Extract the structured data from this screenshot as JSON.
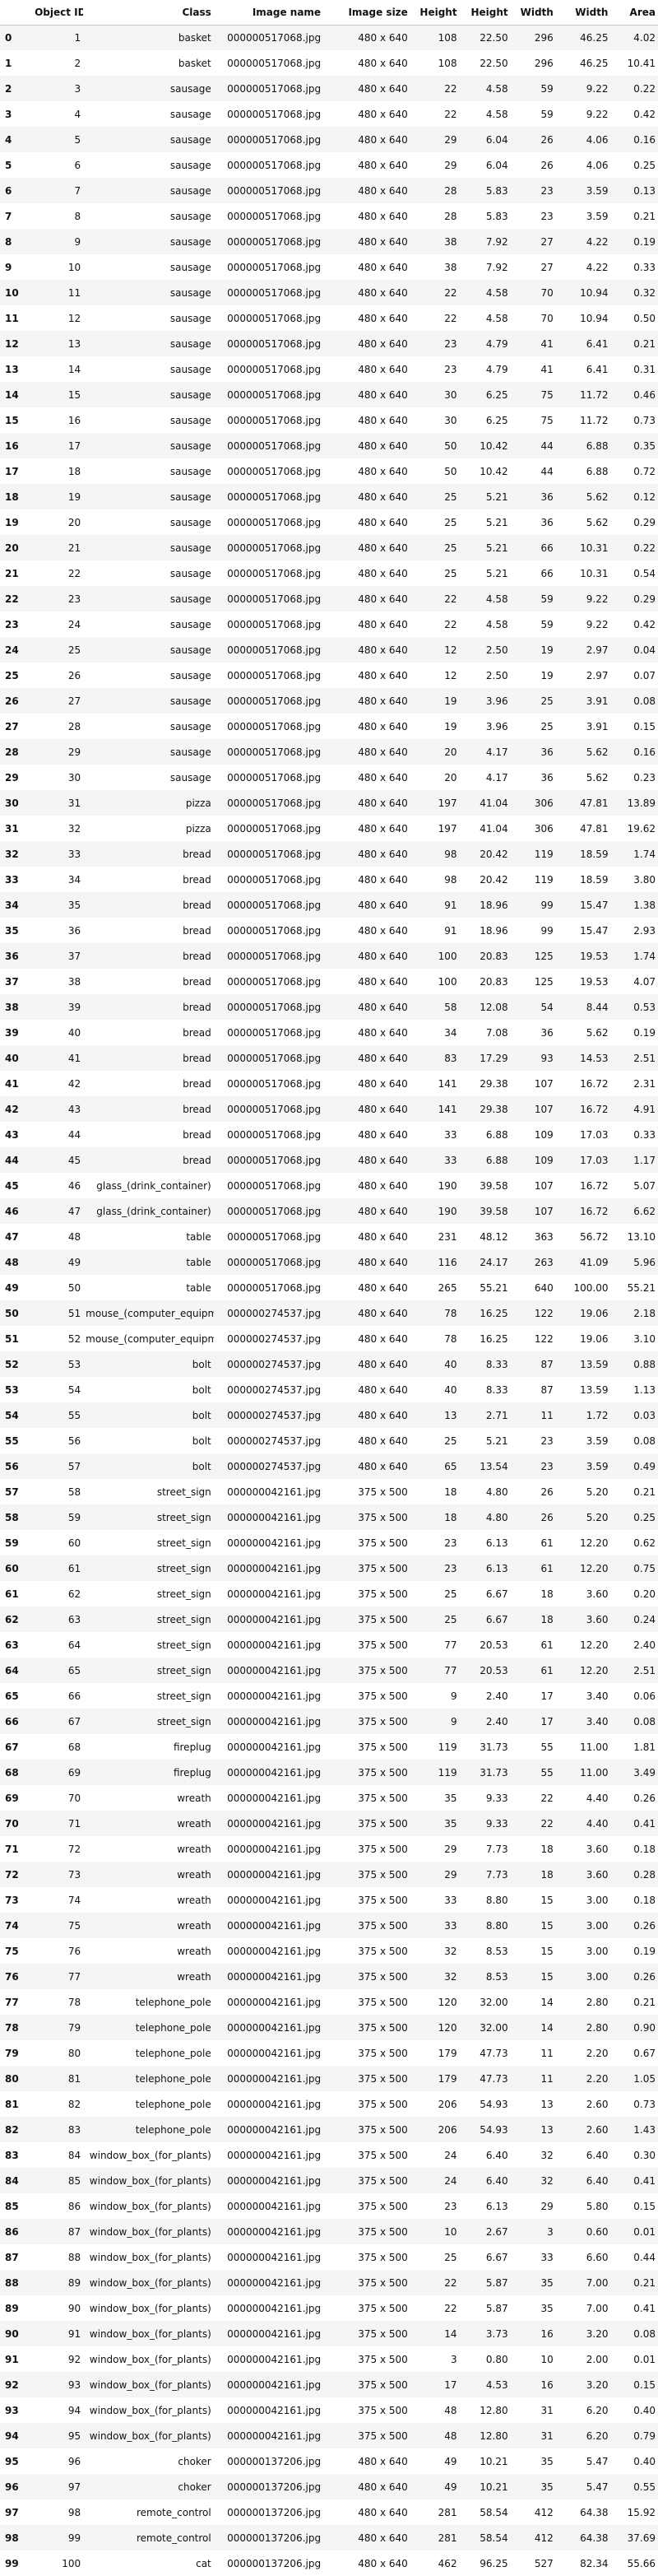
{
  "columns": [
    "Object ID",
    "Class",
    "Image name",
    "Image size",
    "Height",
    "Height",
    "Width",
    "Width",
    "Area"
  ],
  "rows": [
    [
      "0",
      "1",
      "basket",
      "000000517068.jpg",
      "480 x 640",
      "108",
      "22.50",
      "296",
      "46.25",
      "4.02"
    ],
    [
      "1",
      "2",
      "basket",
      "000000517068.jpg",
      "480 x 640",
      "108",
      "22.50",
      "296",
      "46.25",
      "10.41"
    ],
    [
      "2",
      "3",
      "sausage",
      "000000517068.jpg",
      "480 x 640",
      "22",
      "4.58",
      "59",
      "9.22",
      "0.22"
    ],
    [
      "3",
      "4",
      "sausage",
      "000000517068.jpg",
      "480 x 640",
      "22",
      "4.58",
      "59",
      "9.22",
      "0.42"
    ],
    [
      "4",
      "5",
      "sausage",
      "000000517068.jpg",
      "480 x 640",
      "29",
      "6.04",
      "26",
      "4.06",
      "0.16"
    ],
    [
      "5",
      "6",
      "sausage",
      "000000517068.jpg",
      "480 x 640",
      "29",
      "6.04",
      "26",
      "4.06",
      "0.25"
    ],
    [
      "6",
      "7",
      "sausage",
      "000000517068.jpg",
      "480 x 640",
      "28",
      "5.83",
      "23",
      "3.59",
      "0.13"
    ],
    [
      "7",
      "8",
      "sausage",
      "000000517068.jpg",
      "480 x 640",
      "28",
      "5.83",
      "23",
      "3.59",
      "0.21"
    ],
    [
      "8",
      "9",
      "sausage",
      "000000517068.jpg",
      "480 x 640",
      "38",
      "7.92",
      "27",
      "4.22",
      "0.19"
    ],
    [
      "9",
      "10",
      "sausage",
      "000000517068.jpg",
      "480 x 640",
      "38",
      "7.92",
      "27",
      "4.22",
      "0.33"
    ],
    [
      "10",
      "11",
      "sausage",
      "000000517068.jpg",
      "480 x 640",
      "22",
      "4.58",
      "70",
      "10.94",
      "0.32"
    ],
    [
      "11",
      "12",
      "sausage",
      "000000517068.jpg",
      "480 x 640",
      "22",
      "4.58",
      "70",
      "10.94",
      "0.50"
    ],
    [
      "12",
      "13",
      "sausage",
      "000000517068.jpg",
      "480 x 640",
      "23",
      "4.79",
      "41",
      "6.41",
      "0.21"
    ],
    [
      "13",
      "14",
      "sausage",
      "000000517068.jpg",
      "480 x 640",
      "23",
      "4.79",
      "41",
      "6.41",
      "0.31"
    ],
    [
      "14",
      "15",
      "sausage",
      "000000517068.jpg",
      "480 x 640",
      "30",
      "6.25",
      "75",
      "11.72",
      "0.46"
    ],
    [
      "15",
      "16",
      "sausage",
      "000000517068.jpg",
      "480 x 640",
      "30",
      "6.25",
      "75",
      "11.72",
      "0.73"
    ],
    [
      "16",
      "17",
      "sausage",
      "000000517068.jpg",
      "480 x 640",
      "50",
      "10.42",
      "44",
      "6.88",
      "0.35"
    ],
    [
      "17",
      "18",
      "sausage",
      "000000517068.jpg",
      "480 x 640",
      "50",
      "10.42",
      "44",
      "6.88",
      "0.72"
    ],
    [
      "18",
      "19",
      "sausage",
      "000000517068.jpg",
      "480 x 640",
      "25",
      "5.21",
      "36",
      "5.62",
      "0.12"
    ],
    [
      "19",
      "20",
      "sausage",
      "000000517068.jpg",
      "480 x 640",
      "25",
      "5.21",
      "36",
      "5.62",
      "0.29"
    ],
    [
      "20",
      "21",
      "sausage",
      "000000517068.jpg",
      "480 x 640",
      "25",
      "5.21",
      "66",
      "10.31",
      "0.22"
    ],
    [
      "21",
      "22",
      "sausage",
      "000000517068.jpg",
      "480 x 640",
      "25",
      "5.21",
      "66",
      "10.31",
      "0.54"
    ],
    [
      "22",
      "23",
      "sausage",
      "000000517068.jpg",
      "480 x 640",
      "22",
      "4.58",
      "59",
      "9.22",
      "0.29"
    ],
    [
      "23",
      "24",
      "sausage",
      "000000517068.jpg",
      "480 x 640",
      "22",
      "4.58",
      "59",
      "9.22",
      "0.42"
    ],
    [
      "24",
      "25",
      "sausage",
      "000000517068.jpg",
      "480 x 640",
      "12",
      "2.50",
      "19",
      "2.97",
      "0.04"
    ],
    [
      "25",
      "26",
      "sausage",
      "000000517068.jpg",
      "480 x 640",
      "12",
      "2.50",
      "19",
      "2.97",
      "0.07"
    ],
    [
      "26",
      "27",
      "sausage",
      "000000517068.jpg",
      "480 x 640",
      "19",
      "3.96",
      "25",
      "3.91",
      "0.08"
    ],
    [
      "27",
      "28",
      "sausage",
      "000000517068.jpg",
      "480 x 640",
      "19",
      "3.96",
      "25",
      "3.91",
      "0.15"
    ],
    [
      "28",
      "29",
      "sausage",
      "000000517068.jpg",
      "480 x 640",
      "20",
      "4.17",
      "36",
      "5.62",
      "0.16"
    ],
    [
      "29",
      "30",
      "sausage",
      "000000517068.jpg",
      "480 x 640",
      "20",
      "4.17",
      "36",
      "5.62",
      "0.23"
    ],
    [
      "30",
      "31",
      "pizza",
      "000000517068.jpg",
      "480 x 640",
      "197",
      "41.04",
      "306",
      "47.81",
      "13.89"
    ],
    [
      "31",
      "32",
      "pizza",
      "000000517068.jpg",
      "480 x 640",
      "197",
      "41.04",
      "306",
      "47.81",
      "19.62"
    ],
    [
      "32",
      "33",
      "bread",
      "000000517068.jpg",
      "480 x 640",
      "98",
      "20.42",
      "119",
      "18.59",
      "1.74"
    ],
    [
      "33",
      "34",
      "bread",
      "000000517068.jpg",
      "480 x 640",
      "98",
      "20.42",
      "119",
      "18.59",
      "3.80"
    ],
    [
      "34",
      "35",
      "bread",
      "000000517068.jpg",
      "480 x 640",
      "91",
      "18.96",
      "99",
      "15.47",
      "1.38"
    ],
    [
      "35",
      "36",
      "bread",
      "000000517068.jpg",
      "480 x 640",
      "91",
      "18.96",
      "99",
      "15.47",
      "2.93"
    ],
    [
      "36",
      "37",
      "bread",
      "000000517068.jpg",
      "480 x 640",
      "100",
      "20.83",
      "125",
      "19.53",
      "1.74"
    ],
    [
      "37",
      "38",
      "bread",
      "000000517068.jpg",
      "480 x 640",
      "100",
      "20.83",
      "125",
      "19.53",
      "4.07"
    ],
    [
      "38",
      "39",
      "bread",
      "000000517068.jpg",
      "480 x 640",
      "58",
      "12.08",
      "54",
      "8.44",
      "0.53"
    ],
    [
      "39",
      "40",
      "bread",
      "000000517068.jpg",
      "480 x 640",
      "34",
      "7.08",
      "36",
      "5.62",
      "0.19"
    ],
    [
      "40",
      "41",
      "bread",
      "000000517068.jpg",
      "480 x 640",
      "83",
      "17.29",
      "93",
      "14.53",
      "2.51"
    ],
    [
      "41",
      "42",
      "bread",
      "000000517068.jpg",
      "480 x 640",
      "141",
      "29.38",
      "107",
      "16.72",
      "2.31"
    ],
    [
      "42",
      "43",
      "bread",
      "000000517068.jpg",
      "480 x 640",
      "141",
      "29.38",
      "107",
      "16.72",
      "4.91"
    ],
    [
      "43",
      "44",
      "bread",
      "000000517068.jpg",
      "480 x 640",
      "33",
      "6.88",
      "109",
      "17.03",
      "0.33"
    ],
    [
      "44",
      "45",
      "bread",
      "000000517068.jpg",
      "480 x 640",
      "33",
      "6.88",
      "109",
      "17.03",
      "1.17"
    ],
    [
      "45",
      "46",
      "glass_(drink_container)",
      "000000517068.jpg",
      "480 x 640",
      "190",
      "39.58",
      "107",
      "16.72",
      "5.07"
    ],
    [
      "46",
      "47",
      "glass_(drink_container)",
      "000000517068.jpg",
      "480 x 640",
      "190",
      "39.58",
      "107",
      "16.72",
      "6.62"
    ],
    [
      "47",
      "48",
      "table",
      "000000517068.jpg",
      "480 x 640",
      "231",
      "48.12",
      "363",
      "56.72",
      "13.10"
    ],
    [
      "48",
      "49",
      "table",
      "000000517068.jpg",
      "480 x 640",
      "116",
      "24.17",
      "263",
      "41.09",
      "5.96"
    ],
    [
      "49",
      "50",
      "table",
      "000000517068.jpg",
      "480 x 640",
      "265",
      "55.21",
      "640",
      "100.00",
      "55.21"
    ],
    [
      "50",
      "51",
      "mouse_(computer_equipment)",
      "000000274537.jpg",
      "480 x 640",
      "78",
      "16.25",
      "122",
      "19.06",
      "2.18"
    ],
    [
      "51",
      "52",
      "mouse_(computer_equipment)",
      "000000274537.jpg",
      "480 x 640",
      "78",
      "16.25",
      "122",
      "19.06",
      "3.10"
    ],
    [
      "52",
      "53",
      "bolt",
      "000000274537.jpg",
      "480 x 640",
      "40",
      "8.33",
      "87",
      "13.59",
      "0.88"
    ],
    [
      "53",
      "54",
      "bolt",
      "000000274537.jpg",
      "480 x 640",
      "40",
      "8.33",
      "87",
      "13.59",
      "1.13"
    ],
    [
      "54",
      "55",
      "bolt",
      "000000274537.jpg",
      "480 x 640",
      "13",
      "2.71",
      "11",
      "1.72",
      "0.03"
    ],
    [
      "55",
      "56",
      "bolt",
      "000000274537.jpg",
      "480 x 640",
      "25",
      "5.21",
      "23",
      "3.59",
      "0.08"
    ],
    [
      "56",
      "57",
      "bolt",
      "000000274537.jpg",
      "480 x 640",
      "65",
      "13.54",
      "23",
      "3.59",
      "0.49"
    ],
    [
      "57",
      "58",
      "street_sign",
      "000000042161.jpg",
      "375 x 500",
      "18",
      "4.80",
      "26",
      "5.20",
      "0.21"
    ],
    [
      "58",
      "59",
      "street_sign",
      "000000042161.jpg",
      "375 x 500",
      "18",
      "4.80",
      "26",
      "5.20",
      "0.25"
    ],
    [
      "59",
      "60",
      "street_sign",
      "000000042161.jpg",
      "375 x 500",
      "23",
      "6.13",
      "61",
      "12.20",
      "0.62"
    ],
    [
      "60",
      "61",
      "street_sign",
      "000000042161.jpg",
      "375 x 500",
      "23",
      "6.13",
      "61",
      "12.20",
      "0.75"
    ],
    [
      "61",
      "62",
      "street_sign",
      "000000042161.jpg",
      "375 x 500",
      "25",
      "6.67",
      "18",
      "3.60",
      "0.20"
    ],
    [
      "62",
      "63",
      "street_sign",
      "000000042161.jpg",
      "375 x 500",
      "25",
      "6.67",
      "18",
      "3.60",
      "0.24"
    ],
    [
      "63",
      "64",
      "street_sign",
      "000000042161.jpg",
      "375 x 500",
      "77",
      "20.53",
      "61",
      "12.20",
      "2.40"
    ],
    [
      "64",
      "65",
      "street_sign",
      "000000042161.jpg",
      "375 x 500",
      "77",
      "20.53",
      "61",
      "12.20",
      "2.51"
    ],
    [
      "65",
      "66",
      "street_sign",
      "000000042161.jpg",
      "375 x 500",
      "9",
      "2.40",
      "17",
      "3.40",
      "0.06"
    ],
    [
      "66",
      "67",
      "street_sign",
      "000000042161.jpg",
      "375 x 500",
      "9",
      "2.40",
      "17",
      "3.40",
      "0.08"
    ],
    [
      "67",
      "68",
      "fireplug",
      "000000042161.jpg",
      "375 x 500",
      "119",
      "31.73",
      "55",
      "11.00",
      "1.81"
    ],
    [
      "68",
      "69",
      "fireplug",
      "000000042161.jpg",
      "375 x 500",
      "119",
      "31.73",
      "55",
      "11.00",
      "3.49"
    ],
    [
      "69",
      "70",
      "wreath",
      "000000042161.jpg",
      "375 x 500",
      "35",
      "9.33",
      "22",
      "4.40",
      "0.26"
    ],
    [
      "70",
      "71",
      "wreath",
      "000000042161.jpg",
      "375 x 500",
      "35",
      "9.33",
      "22",
      "4.40",
      "0.41"
    ],
    [
      "71",
      "72",
      "wreath",
      "000000042161.jpg",
      "375 x 500",
      "29",
      "7.73",
      "18",
      "3.60",
      "0.18"
    ],
    [
      "72",
      "73",
      "wreath",
      "000000042161.jpg",
      "375 x 500",
      "29",
      "7.73",
      "18",
      "3.60",
      "0.28"
    ],
    [
      "73",
      "74",
      "wreath",
      "000000042161.jpg",
      "375 x 500",
      "33",
      "8.80",
      "15",
      "3.00",
      "0.18"
    ],
    [
      "74",
      "75",
      "wreath",
      "000000042161.jpg",
      "375 x 500",
      "33",
      "8.80",
      "15",
      "3.00",
      "0.26"
    ],
    [
      "75",
      "76",
      "wreath",
      "000000042161.jpg",
      "375 x 500",
      "32",
      "8.53",
      "15",
      "3.00",
      "0.19"
    ],
    [
      "76",
      "77",
      "wreath",
      "000000042161.jpg",
      "375 x 500",
      "32",
      "8.53",
      "15",
      "3.00",
      "0.26"
    ],
    [
      "77",
      "78",
      "telephone_pole",
      "000000042161.jpg",
      "375 x 500",
      "120",
      "32.00",
      "14",
      "2.80",
      "0.21"
    ],
    [
      "78",
      "79",
      "telephone_pole",
      "000000042161.jpg",
      "375 x 500",
      "120",
      "32.00",
      "14",
      "2.80",
      "0.90"
    ],
    [
      "79",
      "80",
      "telephone_pole",
      "000000042161.jpg",
      "375 x 500",
      "179",
      "47.73",
      "11",
      "2.20",
      "0.67"
    ],
    [
      "80",
      "81",
      "telephone_pole",
      "000000042161.jpg",
      "375 x 500",
      "179",
      "47.73",
      "11",
      "2.20",
      "1.05"
    ],
    [
      "81",
      "82",
      "telephone_pole",
      "000000042161.jpg",
      "375 x 500",
      "206",
      "54.93",
      "13",
      "2.60",
      "0.73"
    ],
    [
      "82",
      "83",
      "telephone_pole",
      "000000042161.jpg",
      "375 x 500",
      "206",
      "54.93",
      "13",
      "2.60",
      "1.43"
    ],
    [
      "83",
      "84",
      "window_box_(for_plants)",
      "000000042161.jpg",
      "375 x 500",
      "24",
      "6.40",
      "32",
      "6.40",
      "0.30"
    ],
    [
      "84",
      "85",
      "window_box_(for_plants)",
      "000000042161.jpg",
      "375 x 500",
      "24",
      "6.40",
      "32",
      "6.40",
      "0.41"
    ],
    [
      "85",
      "86",
      "window_box_(for_plants)",
      "000000042161.jpg",
      "375 x 500",
      "23",
      "6.13",
      "29",
      "5.80",
      "0.15"
    ],
    [
      "86",
      "87",
      "window_box_(for_plants)",
      "000000042161.jpg",
      "375 x 500",
      "10",
      "2.67",
      "3",
      "0.60",
      "0.01"
    ],
    [
      "87",
      "88",
      "window_box_(for_plants)",
      "000000042161.jpg",
      "375 x 500",
      "25",
      "6.67",
      "33",
      "6.60",
      "0.44"
    ],
    [
      "88",
      "89",
      "window_box_(for_plants)",
      "000000042161.jpg",
      "375 x 500",
      "22",
      "5.87",
      "35",
      "7.00",
      "0.21"
    ],
    [
      "89",
      "90",
      "window_box_(for_plants)",
      "000000042161.jpg",
      "375 x 500",
      "22",
      "5.87",
      "35",
      "7.00",
      "0.41"
    ],
    [
      "90",
      "91",
      "window_box_(for_plants)",
      "000000042161.jpg",
      "375 x 500",
      "14",
      "3.73",
      "16",
      "3.20",
      "0.08"
    ],
    [
      "91",
      "92",
      "window_box_(for_plants)",
      "000000042161.jpg",
      "375 x 500",
      "3",
      "0.80",
      "10",
      "2.00",
      "0.01"
    ],
    [
      "92",
      "93",
      "window_box_(for_plants)",
      "000000042161.jpg",
      "375 x 500",
      "17",
      "4.53",
      "16",
      "3.20",
      "0.15"
    ],
    [
      "93",
      "94",
      "window_box_(for_plants)",
      "000000042161.jpg",
      "375 x 500",
      "48",
      "12.80",
      "31",
      "6.20",
      "0.40"
    ],
    [
      "94",
      "95",
      "window_box_(for_plants)",
      "000000042161.jpg",
      "375 x 500",
      "48",
      "12.80",
      "31",
      "6.20",
      "0.79"
    ],
    [
      "95",
      "96",
      "choker",
      "000000137206.jpg",
      "480 x 640",
      "49",
      "10.21",
      "35",
      "5.47",
      "0.40"
    ],
    [
      "96",
      "97",
      "choker",
      "000000137206.jpg",
      "480 x 640",
      "49",
      "10.21",
      "35",
      "5.47",
      "0.55"
    ],
    [
      "97",
      "98",
      "remote_control",
      "000000137206.jpg",
      "480 x 640",
      "281",
      "58.54",
      "412",
      "64.38",
      "15.92"
    ],
    [
      "98",
      "99",
      "remote_control",
      "000000137206.jpg",
      "480 x 640",
      "281",
      "58.54",
      "412",
      "64.38",
      "37.69"
    ],
    [
      "99",
      "100",
      "cat",
      "000000137206.jpg",
      "480 x 640",
      "462",
      "96.25",
      "527",
      "82.34",
      "55.66"
    ]
  ]
}
